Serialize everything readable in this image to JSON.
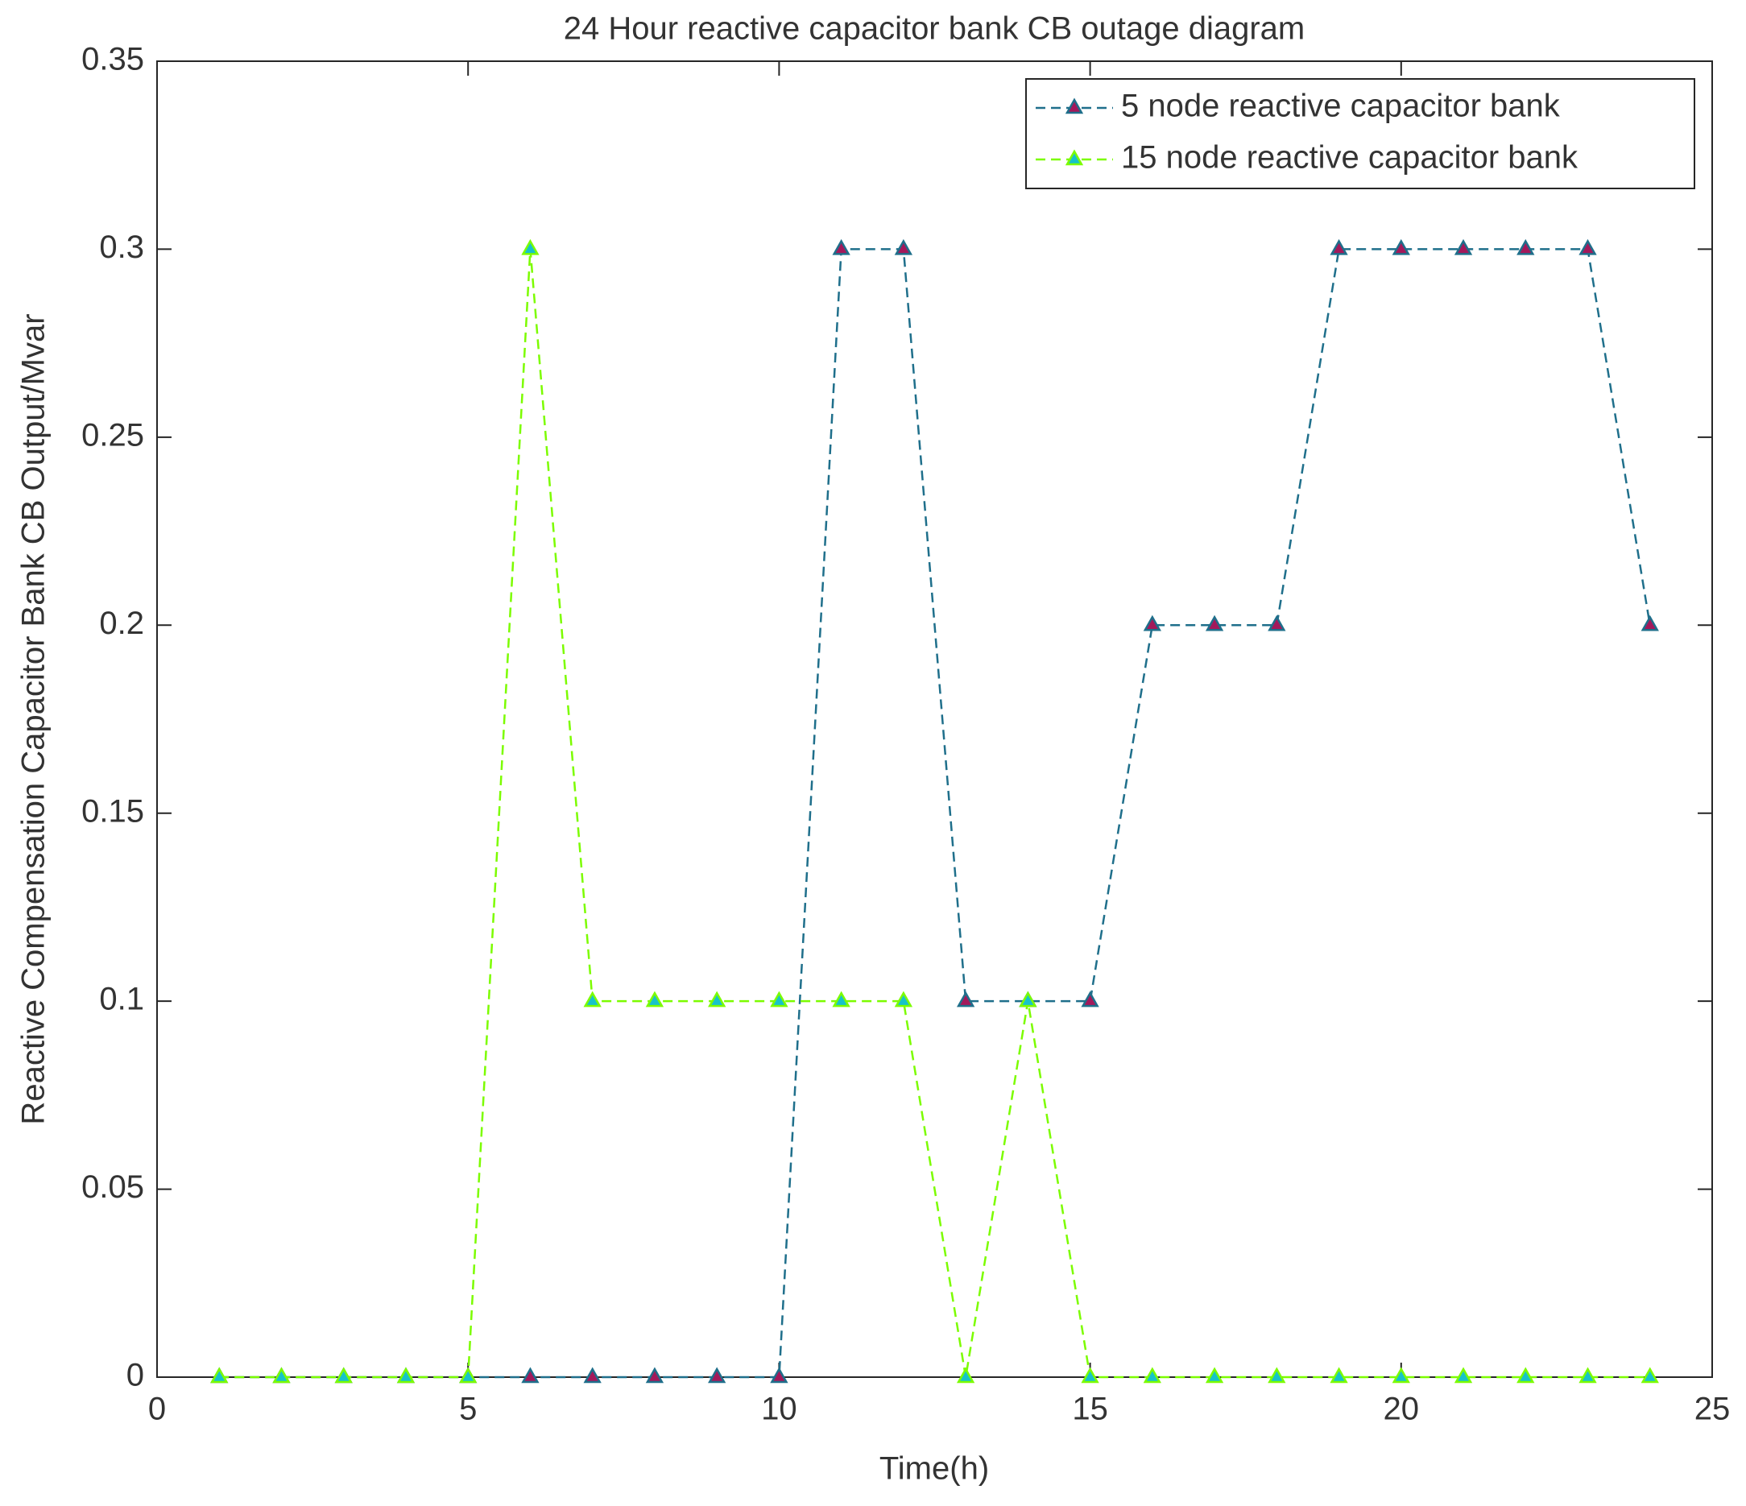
{
  "chart_data": {
    "type": "line",
    "title": "24 Hour reactive capacitor bank CB outage diagram",
    "x_label": "Time(h)",
    "y_label": "Reactive Compensation Capacitor Bank CB Output/Mvar",
    "x": [
      1,
      2,
      3,
      4,
      5,
      6,
      7,
      8,
      9,
      10,
      11,
      12,
      13,
      14,
      15,
      16,
      17,
      18,
      19,
      20,
      21,
      22,
      23,
      24
    ],
    "series": [
      {
        "name": "5 node reactive capacitor bank",
        "color": "#1f6f8b",
        "marker_color": "#a3195b",
        "values": [
          0,
          0,
          0,
          0,
          0,
          0,
          0,
          0,
          0,
          0,
          0.3,
          0.3,
          0.1,
          0.1,
          0.1,
          0.2,
          0.2,
          0.2,
          0.3,
          0.3,
          0.3,
          0.3,
          0.3,
          0.2
        ]
      },
      {
        "name": "15 node reactive capacitor bank",
        "color": "#7cfc00",
        "marker_color": "#17c3c9",
        "values": [
          0,
          0,
          0,
          0,
          0,
          0.3,
          0.1,
          0.1,
          0.1,
          0.1,
          0.1,
          0.1,
          0,
          0.1,
          0,
          0,
          0,
          0,
          0,
          0,
          0,
          0,
          0,
          0
        ]
      }
    ],
    "xlim": [
      0,
      25
    ],
    "xticks": [
      0,
      5,
      10,
      15,
      20,
      25
    ],
    "ylim": [
      0,
      0.35
    ],
    "yticks": [
      0,
      0.05,
      0.1,
      0.15,
      0.2,
      0.25,
      0.3,
      0.35
    ],
    "legend": "top-right",
    "grid": false
  }
}
